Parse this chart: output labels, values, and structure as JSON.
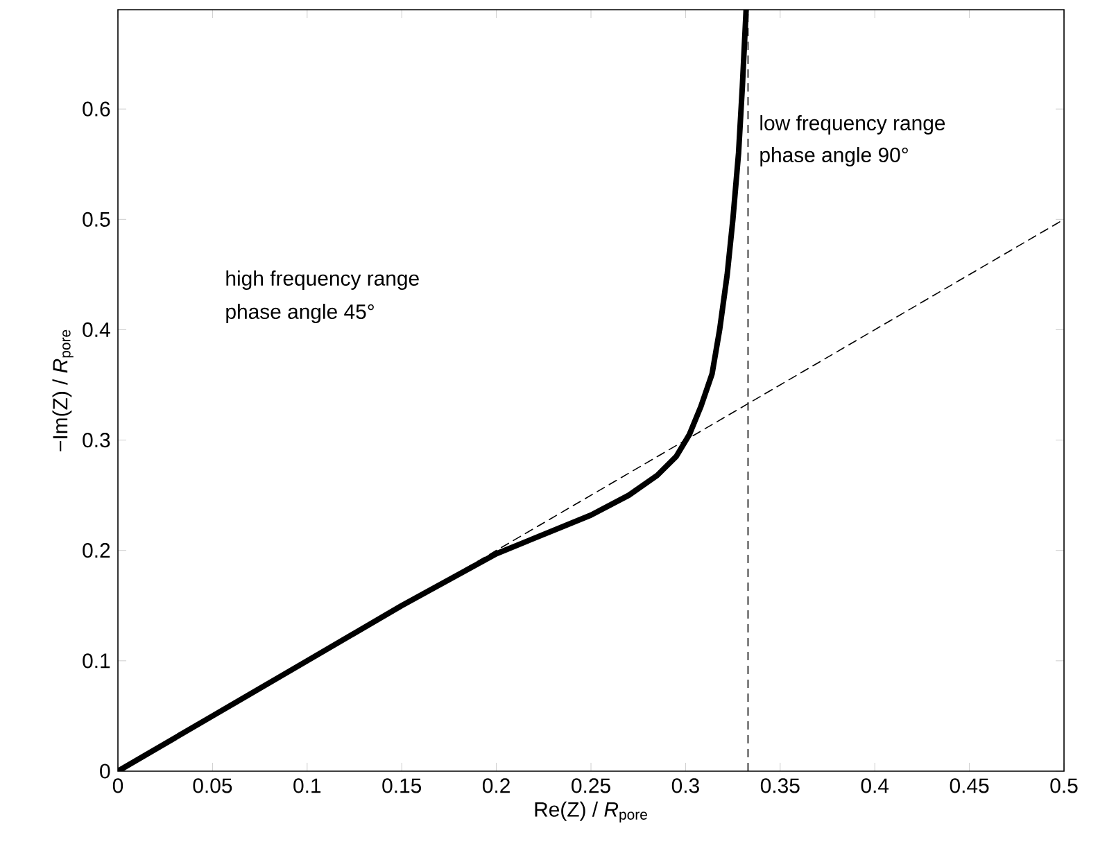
{
  "chart_data": {
    "type": "line",
    "xlabel": "Re(Z) / *R*$_{pore}$",
    "ylabel": "−Im(Z) / *R*$_{pore}$",
    "xlim": [
      0,
      0.5
    ],
    "ylim": [
      0,
      0.69
    ],
    "xticks": [
      0,
      0.05,
      0.1,
      0.15,
      0.2,
      0.25,
      0.3,
      0.35,
      0.4,
      0.45,
      0.5
    ],
    "yticks": [
      0,
      0.1,
      0.2,
      0.3,
      0.4,
      0.5,
      0.6
    ],
    "grid": false,
    "marker": "none",
    "series": [
      {
        "color": "#000000",
        "line_style": "solid",
        "x": [
          0,
          0.05,
          0.1,
          0.15,
          0.2,
          0.25,
          0.27,
          0.285,
          0.295,
          0.302,
          0.308,
          0.314,
          0.318,
          0.322,
          0.325,
          0.328,
          0.33,
          0.332
        ],
        "values": [
          0,
          0.05,
          0.1,
          0.15,
          0.197,
          0.232,
          0.25,
          0.268,
          0.285,
          0.305,
          0.33,
          0.36,
          0.4,
          0.45,
          0.5,
          0.56,
          0.62,
          0.69
        ]
      },
      {
        "color": "#000000",
        "line_style": "dashed",
        "x": [
          0,
          0.5
        ],
        "values": [
          0,
          0.5
        ]
      }
    ],
    "ref_lines": [
      {
        "axis": "x",
        "value": 0.333,
        "line_style": "dashed",
        "color": "#000000"
      }
    ],
    "annotations": [
      "high frequency range",
      "phase angle 45°",
      "low frequency range",
      "phase angle 90°"
    ]
  }
}
